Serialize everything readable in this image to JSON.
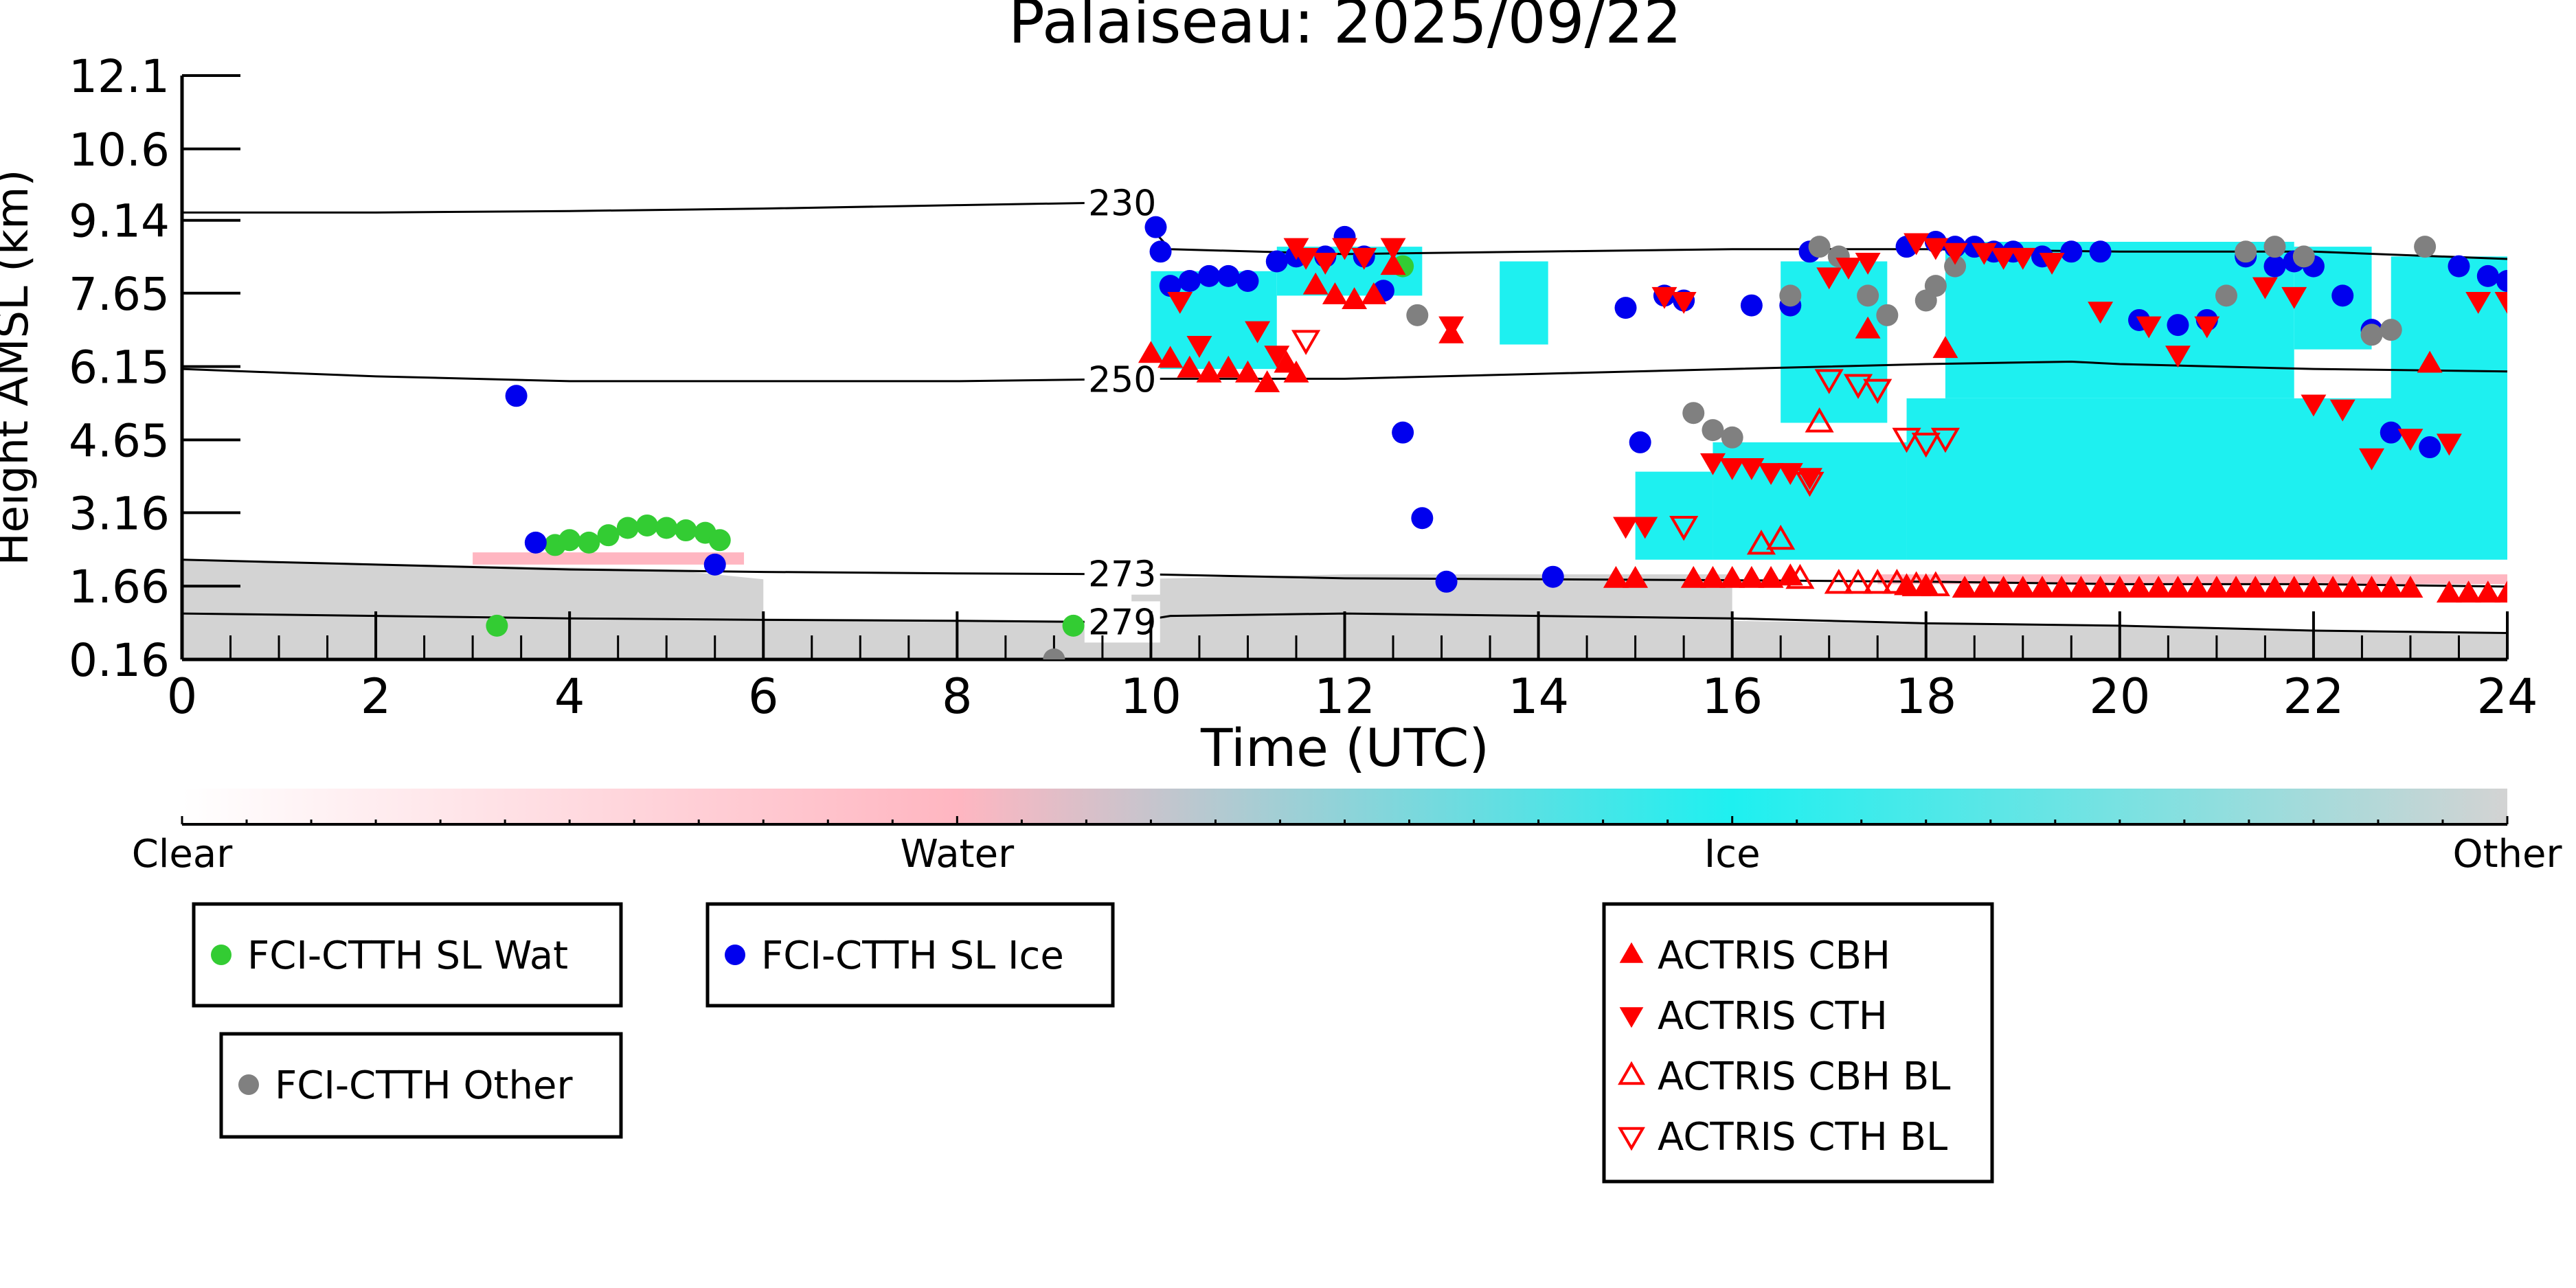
{
  "chart_data": {
    "type": "scatter",
    "title": "Palaiseau: 2025/09/22",
    "xlabel": "Time (UTC)",
    "ylabel": "Height AMSL (km)",
    "xlim": [
      0,
      24
    ],
    "ylim": [
      0.16,
      12.1
    ],
    "x_ticks": [
      "0",
      "2",
      "4",
      "6",
      "8",
      "10",
      "12",
      "14",
      "16",
      "18",
      "20",
      "22",
      "24"
    ],
    "y_ticks": [
      "0.16",
      "1.66",
      "3.16",
      "4.65",
      "6.15",
      "7.65",
      "9.14",
      "10.6",
      "12.1"
    ],
    "grid": false,
    "colorbar": {
      "labels": [
        "Clear",
        "Water",
        "Ice",
        "Other"
      ],
      "colors": [
        "#ffffff",
        "#ffb6c1",
        "#1ef0f0",
        "#d3d3d3"
      ]
    },
    "isotherms": [
      {
        "label": "230",
        "x": [
          0,
          2,
          4,
          6,
          8,
          9.5,
          9.9,
          10.2,
          12,
          14,
          16,
          18,
          20,
          22,
          24
        ],
        "y": [
          9.3,
          9.3,
          9.33,
          9.38,
          9.45,
          9.5,
          9.2,
          8.55,
          8.45,
          8.5,
          8.55,
          8.55,
          8.5,
          8.5,
          8.35
        ]
      },
      {
        "label": "250",
        "x": [
          0,
          2,
          4,
          6,
          8,
          10,
          12,
          14,
          16,
          18,
          19.5,
          20,
          22,
          24
        ],
        "y": [
          6.1,
          5.95,
          5.85,
          5.85,
          5.85,
          5.9,
          5.9,
          6.0,
          6.1,
          6.2,
          6.25,
          6.2,
          6.1,
          6.05
        ]
      },
      {
        "label": "273",
        "x": [
          0,
          2,
          4,
          6,
          8,
          10,
          12,
          14,
          16,
          18,
          20,
          22,
          24
        ],
        "y": [
          2.2,
          2.1,
          2.0,
          1.95,
          1.92,
          1.9,
          1.82,
          1.8,
          1.78,
          1.75,
          1.7,
          1.7,
          1.65
        ]
      },
      {
        "label": "279",
        "x": [
          0,
          2,
          4,
          6,
          8,
          9.8,
          10.2,
          12,
          14,
          16,
          18,
          20,
          22,
          24
        ],
        "y": [
          1.1,
          1.05,
          1.0,
          0.97,
          0.95,
          0.92,
          1.05,
          1.1,
          1.05,
          1.0,
          0.9,
          0.85,
          0.75,
          0.7
        ]
      }
    ],
    "classification_regions": [
      {
        "class": "Other",
        "polygon": [
          [
            0,
            0.16
          ],
          [
            24,
            0.16
          ],
          [
            24,
            0.7
          ],
          [
            16,
            0.95
          ],
          [
            12,
            1.1
          ],
          [
            10.2,
            1.05
          ],
          [
            9.8,
            0.95
          ],
          [
            6,
            1.0
          ],
          [
            0,
            1.1
          ]
        ]
      },
      {
        "class": "Other",
        "polygon": [
          [
            0,
            1.1
          ],
          [
            6,
            1.0
          ],
          [
            6,
            1.8
          ],
          [
            5,
            2.0
          ],
          [
            0,
            2.2
          ]
        ]
      },
      {
        "class": "Other",
        "polygon": [
          [
            9.8,
            0.95
          ],
          [
            16,
            0.95
          ],
          [
            16,
            1.9
          ],
          [
            12,
            1.9
          ],
          [
            9.8,
            1.8
          ]
        ]
      },
      {
        "class": "Water",
        "polygon": [
          [
            3.0,
            2.1
          ],
          [
            5.8,
            2.1
          ],
          [
            5.8,
            2.35
          ],
          [
            3.0,
            2.35
          ]
        ]
      },
      {
        "class": "Ice",
        "polygon": [
          [
            10.0,
            6.1
          ],
          [
            11.3,
            6.1
          ],
          [
            11.3,
            8.1
          ],
          [
            10.0,
            8.1
          ]
        ]
      },
      {
        "class": "Ice",
        "polygon": [
          [
            11.3,
            7.6
          ],
          [
            12.8,
            7.6
          ],
          [
            12.8,
            8.6
          ],
          [
            11.3,
            8.6
          ]
        ]
      },
      {
        "class": "Ice",
        "polygon": [
          [
            13.6,
            6.6
          ],
          [
            14.1,
            6.6
          ],
          [
            14.1,
            8.3
          ],
          [
            13.6,
            8.3
          ]
        ]
      },
      {
        "class": "Ice",
        "polygon": [
          [
            15.0,
            2.2
          ],
          [
            15.8,
            2.2
          ],
          [
            15.8,
            4.0
          ],
          [
            15.0,
            4.0
          ]
        ]
      },
      {
        "class": "Ice",
        "polygon": [
          [
            15.8,
            2.2
          ],
          [
            17.8,
            2.2
          ],
          [
            17.8,
            4.6
          ],
          [
            15.8,
            4.6
          ]
        ]
      },
      {
        "class": "Ice",
        "polygon": [
          [
            16.5,
            5.0
          ],
          [
            17.6,
            5.0
          ],
          [
            17.6,
            8.3
          ],
          [
            16.5,
            8.3
          ]
        ]
      },
      {
        "class": "Ice",
        "polygon": [
          [
            17.8,
            2.2
          ],
          [
            24,
            2.2
          ],
          [
            24,
            5.5
          ],
          [
            17.8,
            5.5
          ]
        ]
      },
      {
        "class": "Ice",
        "polygon": [
          [
            18.2,
            5.5
          ],
          [
            21.8,
            5.5
          ],
          [
            21.8,
            8.7
          ],
          [
            18.2,
            8.7
          ]
        ]
      },
      {
        "class": "Ice",
        "polygon": [
          [
            22.8,
            4.0
          ],
          [
            24,
            4.0
          ],
          [
            24,
            8.4
          ],
          [
            22.8,
            8.4
          ]
        ]
      },
      {
        "class": "Ice",
        "polygon": [
          [
            21.8,
            6.5
          ],
          [
            22.6,
            6.5
          ],
          [
            22.6,
            8.6
          ],
          [
            21.8,
            8.6
          ]
        ]
      },
      {
        "class": "Water",
        "polygon": [
          [
            17.5,
            1.7
          ],
          [
            24,
            1.7
          ],
          [
            24,
            1.9
          ],
          [
            17.5,
            1.9
          ]
        ]
      }
    ],
    "series": [
      {
        "name": "FCI-CTTH SL Wat",
        "marker": "circle",
        "color": "#33cc33",
        "x": [
          3.25,
          3.85,
          4.0,
          4.2,
          4.4,
          4.6,
          4.8,
          5.0,
          5.2,
          5.4,
          5.55,
          9.2,
          12.6
        ],
        "y": [
          0.85,
          2.5,
          2.6,
          2.55,
          2.7,
          2.85,
          2.9,
          2.85,
          2.8,
          2.75,
          2.6,
          0.85,
          8.2
        ]
      },
      {
        "name": "FCI-CTTH SL Ice",
        "marker": "circle",
        "color": "#0000ee",
        "x": [
          3.45,
          3.65,
          5.5,
          10.05,
          10.1,
          10.2,
          10.4,
          10.6,
          10.8,
          11.0,
          11.3,
          11.5,
          11.8,
          12.0,
          12.2,
          12.4,
          12.6,
          12.8,
          13.05,
          14.15,
          14.9,
          15.05,
          15.3,
          15.5,
          16.2,
          16.6,
          16.8,
          17.8,
          18.1,
          18.3,
          18.5,
          18.7,
          18.9,
          19.2,
          19.5,
          19.8,
          20.2,
          20.6,
          20.9,
          21.3,
          21.6,
          21.8,
          22.0,
          22.3,
          22.6,
          22.8,
          23.2,
          23.5,
          23.8,
          24.0
        ],
        "y": [
          5.55,
          2.55,
          2.1,
          9.0,
          8.5,
          7.8,
          7.9,
          8.0,
          8.0,
          7.9,
          8.3,
          8.4,
          8.4,
          8.8,
          8.4,
          7.7,
          4.8,
          3.05,
          1.75,
          1.85,
          7.35,
          4.6,
          7.6,
          7.5,
          7.4,
          7.4,
          8.5,
          8.6,
          8.7,
          8.6,
          8.6,
          8.5,
          8.5,
          8.4,
          8.5,
          8.5,
          7.1,
          7.0,
          7.1,
          8.4,
          8.2,
          8.3,
          8.2,
          7.6,
          6.9,
          4.8,
          4.5,
          8.2,
          8.0,
          7.9
        ]
      },
      {
        "name": "FCI-CTTH Other",
        "marker": "circle",
        "color": "#808080",
        "x": [
          9.0,
          12.75,
          15.6,
          15.8,
          16.0,
          16.6,
          16.9,
          17.1,
          17.4,
          17.6,
          18.0,
          18.1,
          18.3,
          21.1,
          21.3,
          21.6,
          21.9,
          22.6,
          22.8,
          23.15
        ],
        "y": [
          0.16,
          7.2,
          5.2,
          4.85,
          4.7,
          7.6,
          8.6,
          8.4,
          7.6,
          7.2,
          7.5,
          7.8,
          8.2,
          7.6,
          8.5,
          8.6,
          8.4,
          6.8,
          6.9,
          8.6
        ]
      },
      {
        "name": "ACTRIS CBH",
        "marker": "triangle-up",
        "color": "#ff0000",
        "x": [
          10.0,
          10.2,
          10.4,
          10.6,
          10.8,
          11.0,
          11.2,
          11.4,
          11.5,
          11.7,
          11.9,
          12.1,
          12.3,
          12.5,
          13.1,
          14.8,
          15.0,
          15.6,
          15.8,
          16.0,
          16.2,
          16.4,
          16.6,
          17.4,
          17.8,
          18.0,
          18.2,
          18.4,
          18.6,
          18.8,
          19.0,
          19.2,
          19.4,
          19.6,
          19.8,
          20.0,
          20.2,
          20.4,
          20.6,
          20.8,
          21.0,
          21.2,
          21.4,
          21.6,
          21.8,
          22.0,
          22.2,
          22.4,
          22.6,
          22.8,
          23.0,
          23.2,
          23.4,
          23.6,
          23.8,
          24.0
        ],
        "y": [
          6.4,
          6.3,
          6.1,
          6.0,
          6.1,
          6.0,
          5.8,
          6.2,
          6.0,
          7.8,
          7.6,
          7.5,
          7.6,
          8.2,
          6.8,
          1.8,
          1.8,
          1.8,
          1.8,
          1.8,
          1.8,
          1.8,
          1.85,
          6.9,
          1.65,
          1.65,
          6.5,
          1.6,
          1.6,
          1.6,
          1.6,
          1.6,
          1.6,
          1.6,
          1.6,
          1.6,
          1.6,
          1.6,
          1.6,
          1.6,
          1.6,
          1.6,
          1.6,
          1.6,
          1.6,
          1.6,
          1.6,
          1.6,
          1.6,
          1.6,
          1.6,
          6.2,
          1.5,
          1.5,
          1.5,
          1.5
        ]
      },
      {
        "name": "ACTRIS CTH",
        "marker": "triangle-down",
        "color": "#ff0000",
        "x": [
          10.3,
          10.5,
          11.1,
          11.3,
          11.5,
          11.6,
          11.8,
          12.0,
          12.2,
          12.5,
          13.1,
          14.9,
          15.1,
          15.3,
          15.5,
          15.8,
          16.0,
          16.2,
          16.4,
          16.6,
          16.8,
          17.0,
          17.2,
          17.4,
          17.9,
          18.1,
          18.3,
          18.6,
          18.8,
          19.0,
          19.3,
          19.8,
          20.3,
          20.6,
          20.9,
          21.5,
          21.8,
          22.0,
          22.3,
          22.6,
          23.0,
          23.4,
          23.7,
          24.0
        ],
        "y": [
          7.5,
          6.6,
          6.9,
          6.4,
          8.6,
          8.4,
          8.3,
          8.6,
          8.4,
          8.6,
          7.0,
          2.9,
          2.9,
          7.6,
          7.5,
          4.2,
          4.1,
          4.1,
          4.0,
          4.0,
          3.9,
          8.0,
          8.2,
          8.3,
          8.7,
          8.6,
          8.5,
          8.5,
          8.4,
          8.4,
          8.3,
          7.3,
          7.0,
          6.4,
          7.0,
          7.8,
          7.6,
          5.4,
          5.3,
          4.3,
          4.7,
          4.6,
          7.5,
          7.5
        ]
      },
      {
        "name": "ACTRIS CBH BL",
        "marker": "triangle-up-open",
        "color": "#ff0000",
        "x": [
          16.3,
          16.5,
          16.7,
          16.9,
          17.1,
          17.3,
          17.5,
          17.7,
          17.9,
          18.1
        ],
        "y": [
          2.5,
          2.6,
          1.8,
          5.0,
          1.7,
          1.7,
          1.7,
          1.7,
          1.65,
          1.65
        ]
      },
      {
        "name": "ACTRIS CTH BL",
        "marker": "triangle-down-open",
        "color": "#ff0000",
        "x": [
          15.5,
          16.8,
          17.0,
          17.3,
          17.5,
          17.8,
          18.0,
          18.2,
          11.6
        ],
        "y": [
          2.9,
          3.8,
          5.9,
          5.8,
          5.7,
          4.7,
          4.6,
          4.7,
          6.7
        ]
      }
    ]
  },
  "legend_boxes": [
    {
      "items": [
        0
      ]
    },
    {
      "items": [
        1
      ]
    },
    {
      "items": [
        2
      ]
    },
    {
      "items": [
        3,
        4,
        5,
        6
      ]
    }
  ]
}
